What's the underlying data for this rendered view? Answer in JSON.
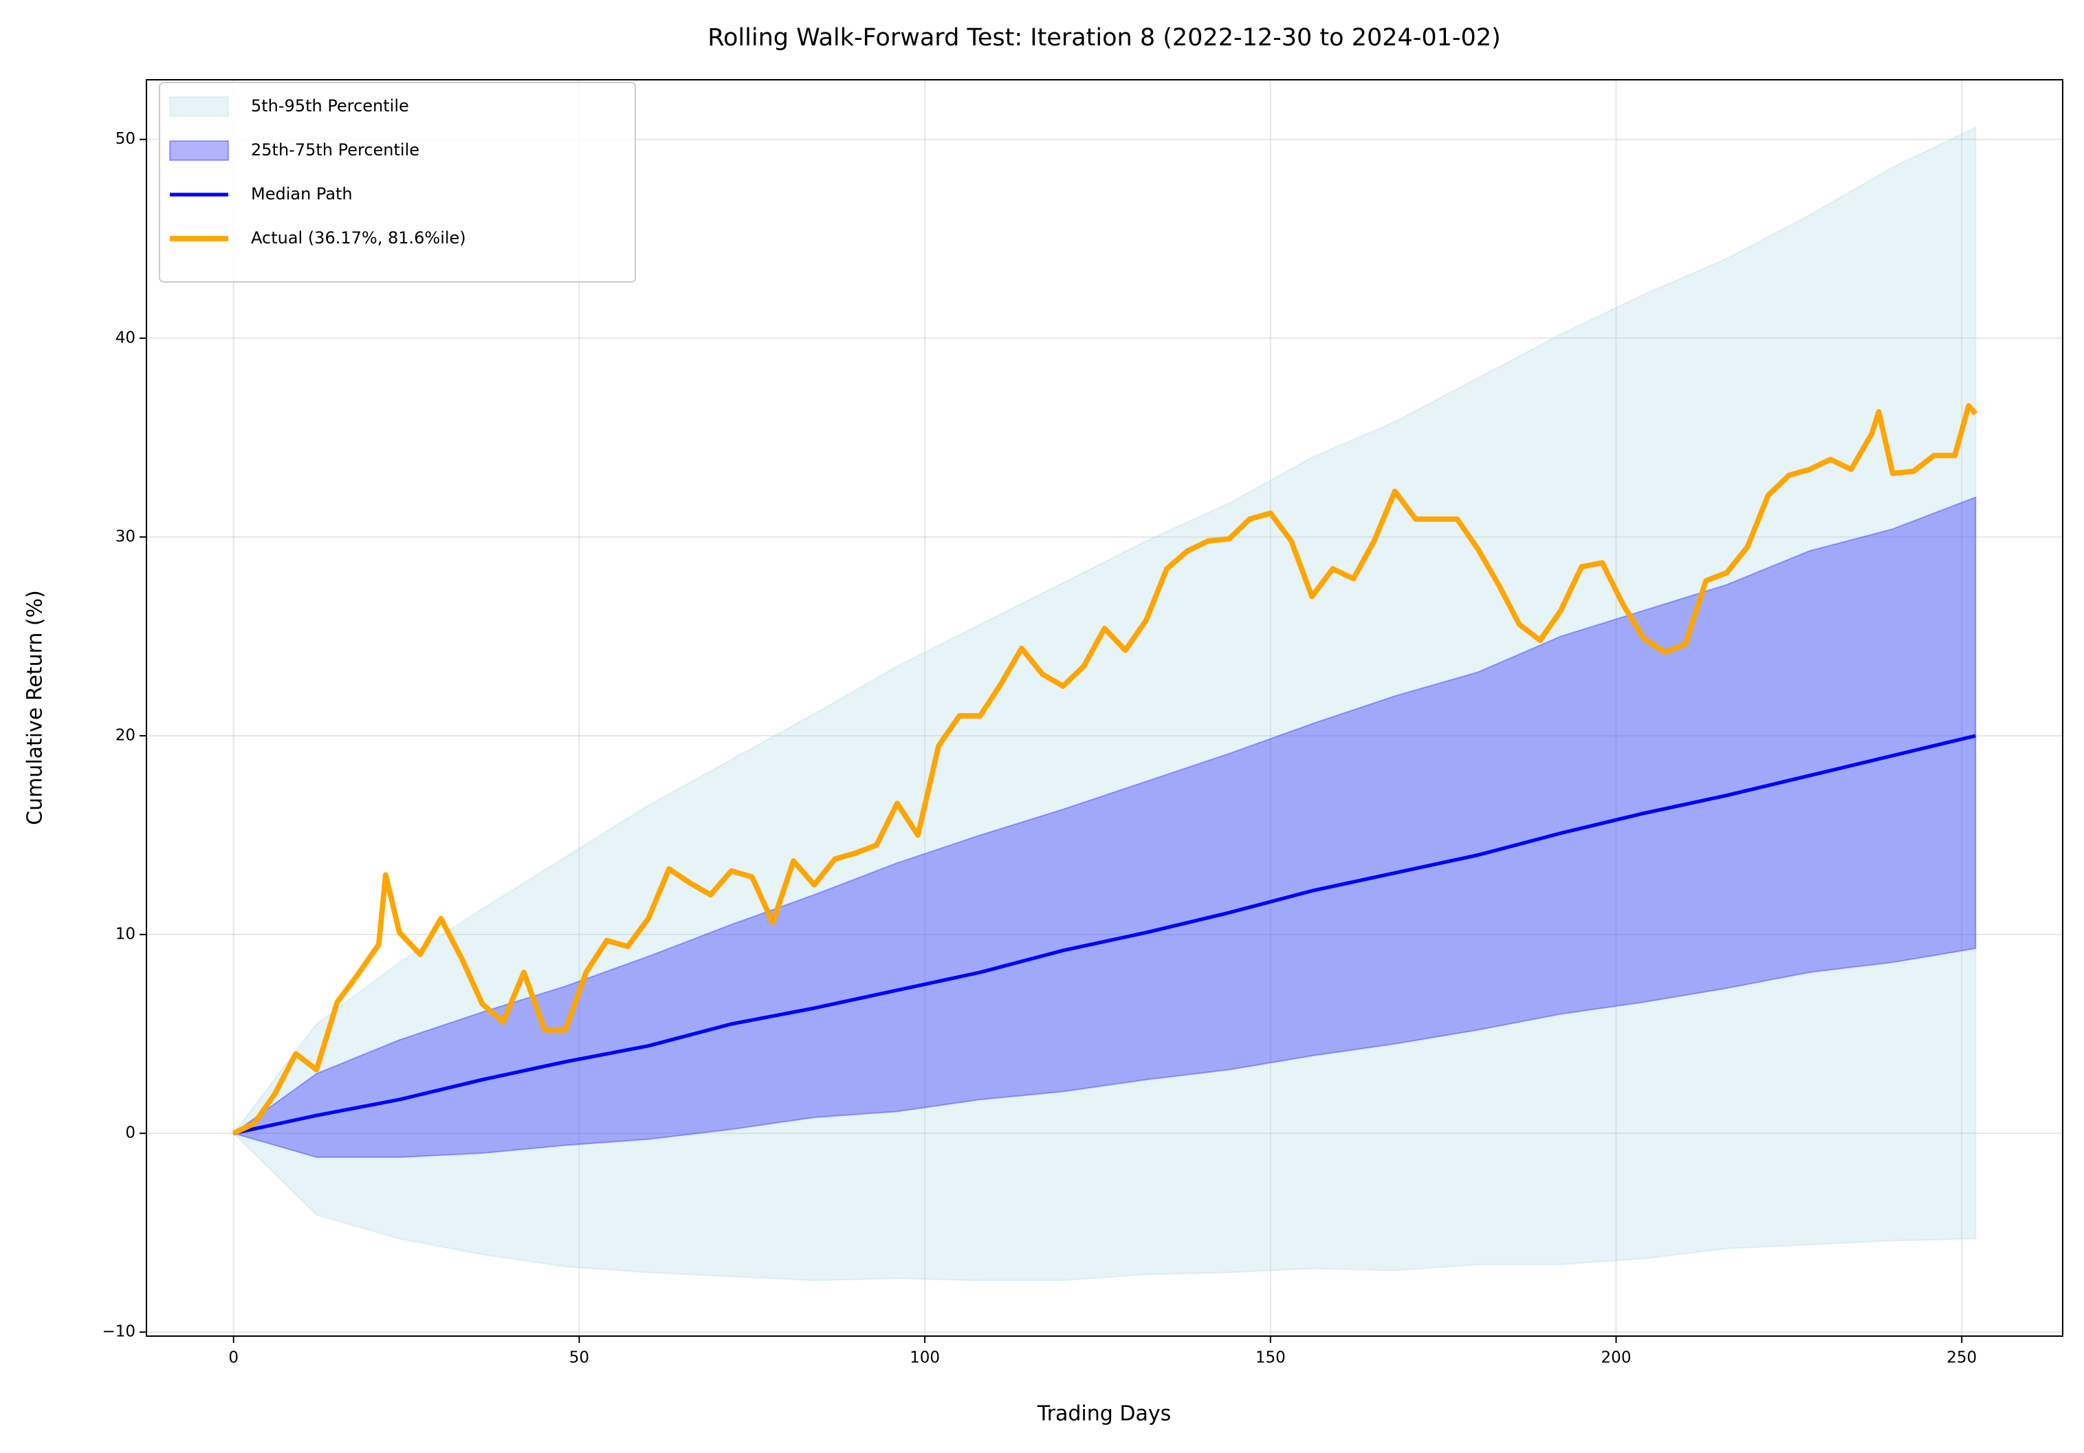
{
  "chart_data": {
    "type": "line",
    "title": "Rolling Walk-Forward Test: Iteration 8 (2022-12-30 to 2024-01-02)",
    "x_label": "Trading Days",
    "y_label": "Cumulative Return (%)",
    "xlim": [
      -12.6,
      264.6
    ],
    "ylim": [
      -10.2,
      53.0
    ],
    "xticks": [
      0,
      50,
      100,
      150,
      200,
      250
    ],
    "yticks": [
      {
        "value": -10,
        "label": "−10"
      },
      0,
      10,
      20,
      30,
      40,
      50
    ],
    "grid": true,
    "legend": "upper left",
    "x": [
      0,
      12,
      24,
      36,
      48,
      60,
      72,
      84,
      96,
      108,
      120,
      132,
      144,
      156,
      168,
      180,
      192,
      204,
      216,
      228,
      240,
      252
    ],
    "series": [
      {
        "name": "5th-95th Percentile",
        "kind": "band",
        "color": "#add8e6",
        "opacity": 0.3,
        "upper": [
          0,
          5.5,
          8.6,
          11.3,
          13.9,
          16.5,
          18.8,
          21.1,
          23.5,
          25.6,
          27.7,
          29.8,
          31.7,
          34.0,
          35.8,
          38.0,
          40.2,
          42.2,
          44.0,
          46.2,
          48.6,
          50.6
        ],
        "lower": [
          0,
          -4.1,
          -5.3,
          -6.1,
          -6.7,
          -7.0,
          -7.2,
          -7.4,
          -7.3,
          -7.4,
          -7.4,
          -7.1,
          -7.0,
          -6.8,
          -6.9,
          -6.6,
          -6.6,
          -6.3,
          -5.8,
          -5.6,
          -5.4,
          -5.3
        ]
      },
      {
        "name": "25th-75th Percentile",
        "kind": "band",
        "color": "#0000ff",
        "opacity": 0.3,
        "upper": [
          0,
          3.0,
          4.7,
          6.1,
          7.4,
          8.9,
          10.5,
          12.0,
          13.6,
          15.0,
          16.3,
          17.7,
          19.1,
          20.6,
          22.0,
          23.2,
          25.0,
          26.3,
          27.6,
          29.3,
          30.4,
          32.0
        ],
        "lower": [
          0,
          -1.2,
          -1.2,
          -1.0,
          -0.6,
          -0.3,
          0.2,
          0.8,
          1.1,
          1.7,
          2.1,
          2.7,
          3.2,
          3.9,
          4.5,
          5.2,
          6.0,
          6.6,
          7.3,
          8.1,
          8.6,
          9.3
        ]
      },
      {
        "name": "Median Path",
        "kind": "line",
        "color": "#0000ff",
        "width": 2,
        "values": [
          0,
          0.9,
          1.7,
          2.7,
          3.6,
          4.4,
          5.5,
          6.3,
          7.2,
          8.1,
          9.2,
          10.1,
          11.1,
          12.2,
          13.1,
          14.0,
          15.1,
          16.1,
          17.0,
          18.0,
          19.0,
          20.0
        ]
      },
      {
        "name": "Actual (36.17%, 81.6%ile)",
        "kind": "line",
        "color": "#ffa500",
        "width": 3,
        "x": [
          0,
          3,
          6,
          9,
          12,
          15,
          18,
          21,
          22,
          24,
          27,
          30,
          33,
          36,
          39,
          42,
          45,
          48,
          51,
          54,
          57,
          60,
          63,
          66,
          69,
          72,
          75,
          78,
          81,
          84,
          87,
          90,
          93,
          96,
          99,
          102,
          105,
          108,
          111,
          114,
          117,
          120,
          123,
          126,
          129,
          132,
          135,
          138,
          141,
          144,
          147,
          150,
          153,
          156,
          159,
          162,
          165,
          168,
          171,
          174,
          177,
          180,
          183,
          186,
          189,
          192,
          195,
          198,
          201,
          204,
          207,
          210,
          213,
          216,
          219,
          222,
          225,
          228,
          231,
          234,
          237,
          238,
          240,
          243,
          246,
          249,
          251,
          252
        ],
        "values": [
          0,
          0.5,
          2.0,
          4.0,
          3.2,
          6.6,
          8.0,
          9.5,
          13.0,
          10.1,
          9.0,
          10.8,
          8.8,
          6.5,
          5.6,
          8.1,
          5.2,
          5.2,
          8.1,
          9.7,
          9.4,
          10.8,
          13.3,
          12.6,
          12.0,
          13.2,
          12.9,
          10.6,
          13.7,
          12.5,
          13.8,
          14.1,
          14.5,
          16.6,
          15.0,
          19.5,
          21.0,
          21.0,
          22.6,
          24.4,
          23.1,
          22.5,
          23.5,
          25.4,
          24.3,
          25.8,
          28.4,
          29.3,
          29.8,
          29.9,
          30.9,
          31.2,
          29.8,
          27.0,
          28.4,
          27.9,
          29.8,
          32.3,
          30.9,
          30.9,
          30.9,
          29.4,
          27.6,
          25.6,
          24.8,
          26.3,
          28.5,
          28.7,
          26.6,
          24.9,
          24.2,
          24.6,
          27.8,
          28.2,
          29.5,
          32.1,
          33.1,
          33.4,
          33.9,
          33.4,
          35.2,
          36.3,
          33.2,
          33.3,
          34.1,
          34.1,
          36.6,
          36.2
        ]
      }
    ]
  }
}
